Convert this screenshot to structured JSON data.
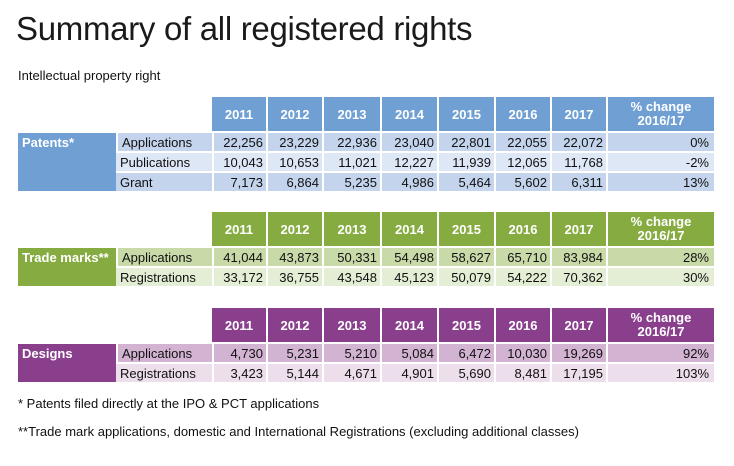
{
  "title": "Summary of all registered rights",
  "subtitle": "Intellectual property right",
  "years": [
    "2011",
    "2012",
    "2013",
    "2014",
    "2015",
    "2016",
    "2017"
  ],
  "pct_header": [
    "% change",
    "2016/17"
  ],
  "colors": {
    "patents": {
      "dark": "#6f9fd3",
      "row_a": "#c3d4ec",
      "row_b": "#dde7f5"
    },
    "trade_marks": {
      "dark": "#86ab41",
      "row_a": "#c9daa9",
      "row_b": "#e4eed5"
    },
    "designs": {
      "dark": "#8a3f8d",
      "row_a": "#d3b3d2",
      "row_b": "#ecdeeb"
    }
  },
  "groups": [
    {
      "key": "patents",
      "name": "Patents*",
      "rows": [
        {
          "label": "Applications",
          "values": [
            "22,256",
            "23,229",
            "22,936",
            "23,040",
            "22,801",
            "22,055",
            "22,072"
          ],
          "pct": "0%"
        },
        {
          "label": "Publications",
          "values": [
            "10,043",
            "10,653",
            "11,021",
            "12,227",
            "11,939",
            "12,065",
            "11,768"
          ],
          "pct": "-2%"
        },
        {
          "label": "Grant",
          "values": [
            "7,173",
            "6,864",
            "5,235",
            "4,986",
            "5,464",
            "5,602",
            "6,311"
          ],
          "pct": "13%"
        }
      ]
    },
    {
      "key": "trade_marks",
      "name": "Trade marks**",
      "rows": [
        {
          "label": "Applications",
          "values": [
            "41,044",
            "43,873",
            "50,331",
            "54,498",
            "58,627",
            "65,710",
            "83,984"
          ],
          "pct": "28%"
        },
        {
          "label": "Registrations",
          "values": [
            "33,172",
            "36,755",
            "43,548",
            "45,123",
            "50,079",
            "54,222",
            "70,362"
          ],
          "pct": "30%"
        }
      ]
    },
    {
      "key": "designs",
      "name": "Designs",
      "rows": [
        {
          "label": "Applications",
          "values": [
            "4,730",
            "5,231",
            "5,210",
            "5,084",
            "6,472",
            "10,030",
            "19,269"
          ],
          "pct": "92%"
        },
        {
          "label": "Registrations",
          "values": [
            "3,423",
            "5,144",
            "4,671",
            "4,901",
            "5,690",
            "8,481",
            "17,195"
          ],
          "pct": "103%"
        }
      ]
    }
  ],
  "footnotes": [
    "* Patents filed directly at the IPO & PCT applications",
    "**Trade mark applications, domestic and International Registrations (excluding additional classes)"
  ]
}
